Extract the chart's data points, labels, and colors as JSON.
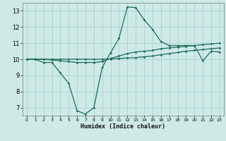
{
  "xlabel": "Humidex (Indice chaleur)",
  "background_color": "#ceeae7",
  "grid_color": "#aed4d0",
  "line_color": "#1a6b5a",
  "xlim": [
    -0.5,
    23.5
  ],
  "ylim": [
    6.5,
    13.5
  ],
  "xticks": [
    0,
    1,
    2,
    3,
    4,
    5,
    6,
    7,
    8,
    9,
    10,
    11,
    12,
    13,
    14,
    15,
    16,
    17,
    18,
    19,
    20,
    21,
    22,
    23
  ],
  "yticks": [
    7,
    8,
    9,
    10,
    11,
    12,
    13
  ],
  "line1_x": [
    0,
    1,
    2,
    3,
    4,
    5,
    6,
    7,
    8,
    9,
    10,
    11,
    12,
    13,
    14,
    15,
    16,
    17,
    18,
    19,
    20,
    21,
    22,
    23
  ],
  "line1_y": [
    10.0,
    10.0,
    9.8,
    9.8,
    9.15,
    8.5,
    6.8,
    6.6,
    7.0,
    9.5,
    10.4,
    11.3,
    13.25,
    13.2,
    12.45,
    11.85,
    11.1,
    10.85,
    10.85,
    10.85,
    10.85,
    9.9,
    10.5,
    10.45
  ],
  "line2_x": [
    0,
    1,
    2,
    3,
    4,
    5,
    6,
    7,
    8,
    9,
    10,
    11,
    12,
    13,
    14,
    15,
    16,
    17,
    18,
    19,
    20,
    21,
    22,
    23
  ],
  "line2_y": [
    10.0,
    10.0,
    10.0,
    9.95,
    9.9,
    9.85,
    9.8,
    9.8,
    9.8,
    9.85,
    10.05,
    10.2,
    10.35,
    10.45,
    10.5,
    10.55,
    10.65,
    10.7,
    10.75,
    10.8,
    10.85,
    10.9,
    10.95,
    11.0
  ],
  "line3_x": [
    0,
    1,
    2,
    3,
    4,
    5,
    6,
    7,
    8,
    9,
    10,
    11,
    12,
    13,
    14,
    15,
    16,
    17,
    18,
    19,
    20,
    21,
    22,
    23
  ],
  "line3_y": [
    10.0,
    10.0,
    10.0,
    10.0,
    10.0,
    10.0,
    10.0,
    10.0,
    10.0,
    10.0,
    10.02,
    10.05,
    10.08,
    10.1,
    10.15,
    10.2,
    10.28,
    10.35,
    10.42,
    10.5,
    10.55,
    10.6,
    10.65,
    10.7
  ]
}
